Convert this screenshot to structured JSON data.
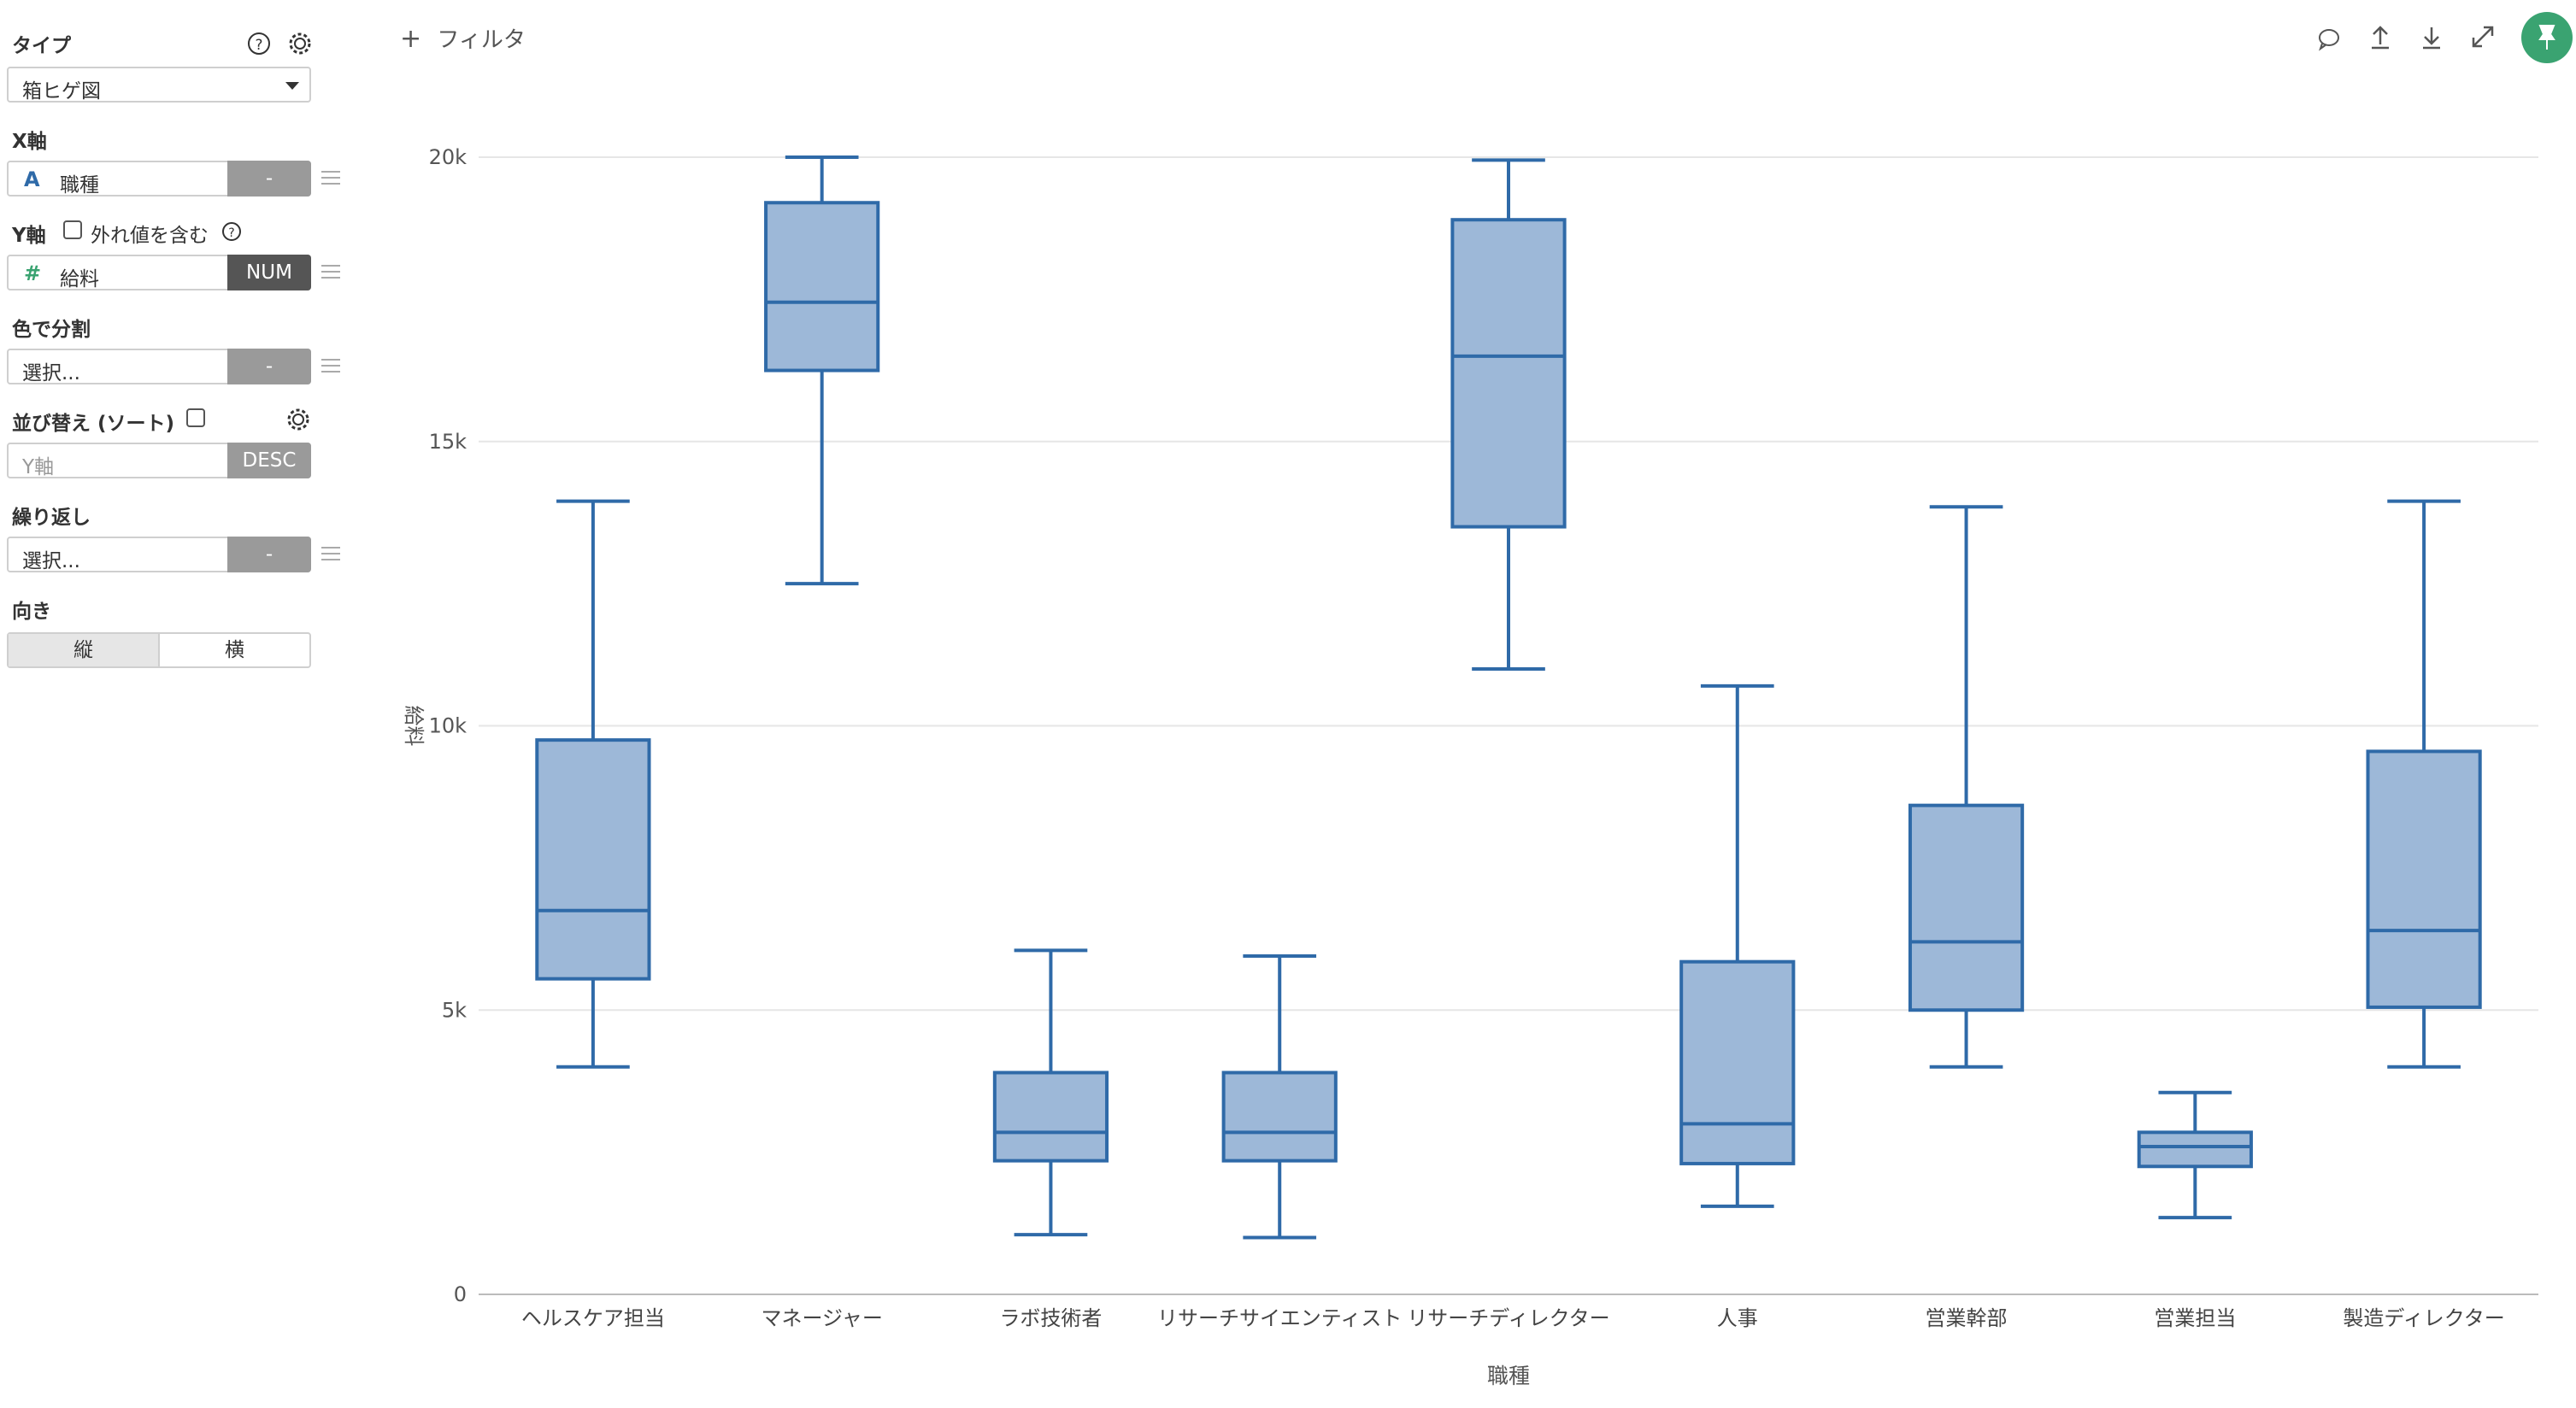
{
  "sidebar": {
    "type_label": "タイプ",
    "type_value": "箱ヒゲ図",
    "x_label": "X軸",
    "x_field": "職種",
    "x_tag": "-",
    "y_label": "Y軸",
    "y_outlier_label": "外れ値を含む",
    "y_field": "給料",
    "y_tag": "NUM",
    "color_label": "色で分割",
    "color_placeholder": "選択...",
    "color_tag": "-",
    "sort_label": "並び替え (ソート)",
    "sort_placeholder": "Y軸",
    "sort_tag": "DESC",
    "repeat_label": "繰り返し",
    "repeat_placeholder": "選択...",
    "repeat_tag": "-",
    "orient_label": "向き",
    "orient_vertical": "縦",
    "orient_horizontal": "横"
  },
  "topbar": {
    "filter_label": "フィルタ",
    "accent": "#3aa371"
  },
  "chart_data": {
    "type": "box",
    "xlabel": "職種",
    "ylabel": "給料",
    "ylim": [
      0,
      20000
    ],
    "yticks": [
      0,
      5000,
      10000,
      15000,
      20000
    ],
    "ytick_labels": [
      "0",
      "5k",
      "10k",
      "15k",
      "20k"
    ],
    "grid": true,
    "box_fill": "#9db8d8",
    "box_stroke": "#2f6aa8",
    "categories": [
      "ヘルスケア担当",
      "マネージャー",
      "ラボ技術者",
      "リサーチサイエンティスト",
      "リサーチディレクター",
      "人事",
      "営業幹部",
      "営業担当",
      "製造ディレクター"
    ],
    "boxes": [
      {
        "min": 4000,
        "q1": 5550,
        "median": 6750,
        "q3": 9750,
        "max": 13950
      },
      {
        "min": 12500,
        "q1": 16250,
        "median": 17450,
        "q3": 19200,
        "max": 20000
      },
      {
        "min": 1050,
        "q1": 2350,
        "median": 2850,
        "q3": 3900,
        "max": 6050
      },
      {
        "min": 1000,
        "q1": 2350,
        "median": 2850,
        "q3": 3900,
        "max": 5950
      },
      {
        "min": 11000,
        "q1": 13500,
        "median": 16500,
        "q3": 18900,
        "max": 19950
      },
      {
        "min": 1550,
        "q1": 2300,
        "median": 3000,
        "q3": 5850,
        "max": 10700
      },
      {
        "min": 4000,
        "q1": 5000,
        "median": 6200,
        "q3": 8600,
        "max": 13850
      },
      {
        "min": 1350,
        "q1": 2250,
        "median": 2600,
        "q3": 2850,
        "max": 3550
      },
      {
        "min": 4000,
        "q1": 5050,
        "median": 6400,
        "q3": 9550,
        "max": 13950
      }
    ]
  }
}
